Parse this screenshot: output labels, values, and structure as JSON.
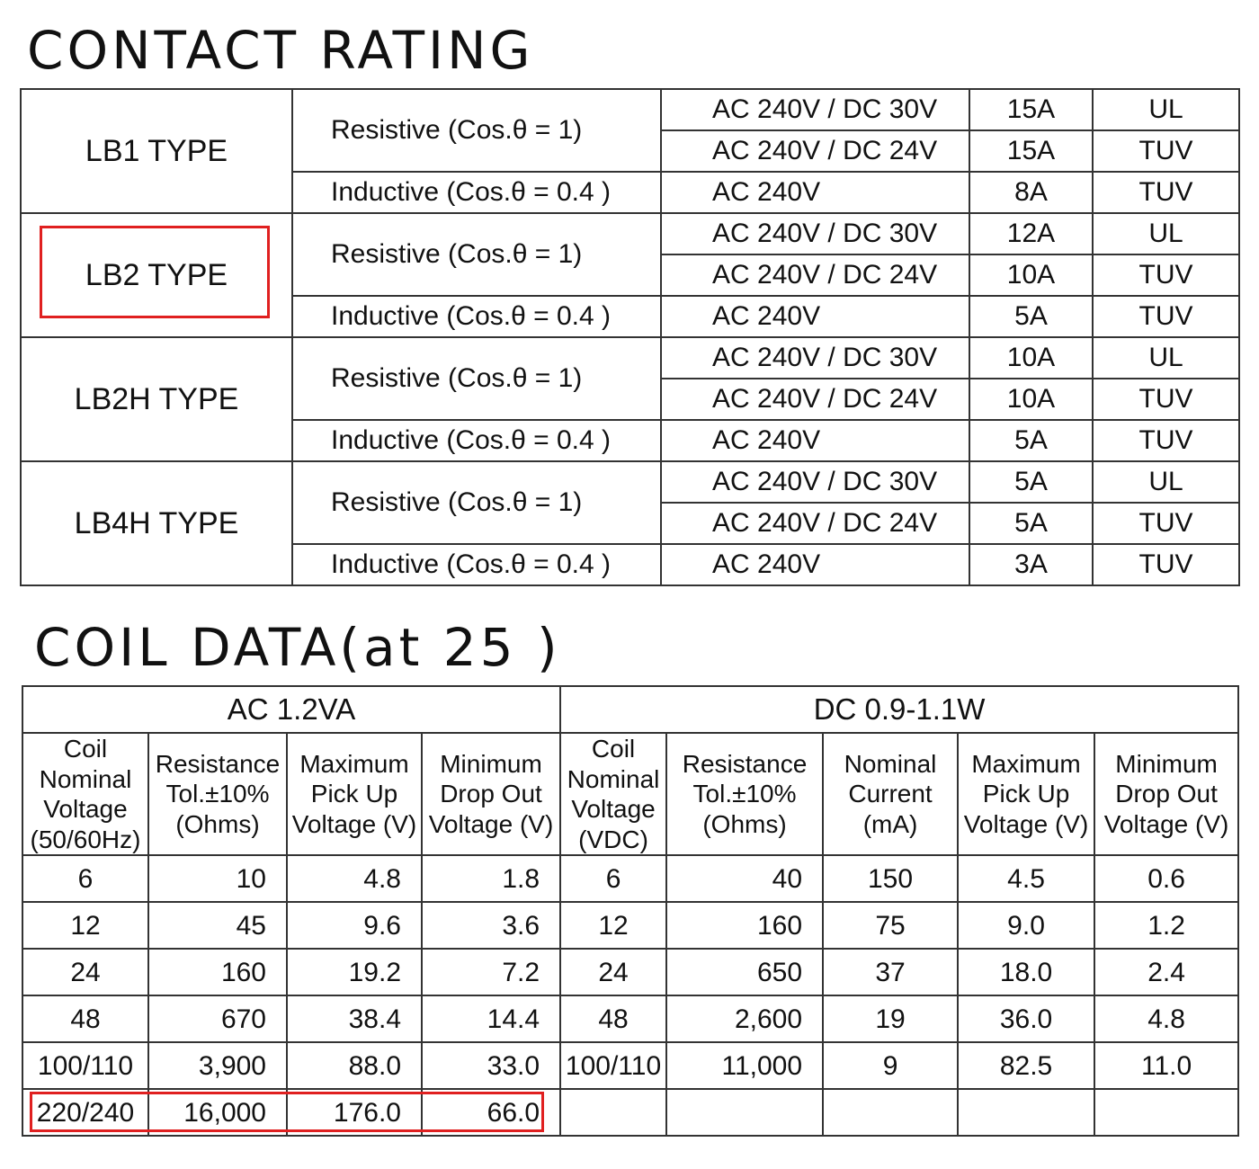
{
  "contact_section": {
    "title": "CONTACT RATING",
    "types": [
      {
        "name": "LB1 TYPE",
        "resistive_label": "Resistive (Cos.θ = 1)",
        "inductive_label": "Inductive (Cos.θ = 0.4 )",
        "rows": [
          {
            "voltage": "AC 240V / DC 30V",
            "current": "15A",
            "cert": "UL"
          },
          {
            "voltage": "AC 240V / DC 24V",
            "current": "15A",
            "cert": "TUV"
          },
          {
            "voltage": "AC 240V",
            "current": "8A",
            "cert": "TUV"
          }
        ]
      },
      {
        "name": "LB2 TYPE",
        "resistive_label": "Resistive (Cos.θ = 1)",
        "inductive_label": "Inductive (Cos.θ = 0.4 )",
        "rows": [
          {
            "voltage": "AC 240V / DC 30V",
            "current": "12A",
            "cert": "UL"
          },
          {
            "voltage": "AC 240V / DC 24V",
            "current": "10A",
            "cert": "TUV"
          },
          {
            "voltage": "AC 240V",
            "current": "5A",
            "cert": "TUV"
          }
        ]
      },
      {
        "name": "LB2H TYPE",
        "resistive_label": "Resistive (Cos.θ = 1)",
        "inductive_label": "Inductive (Cos.θ = 0.4 )",
        "rows": [
          {
            "voltage": "AC 240V / DC 30V",
            "current": "10A",
            "cert": "UL"
          },
          {
            "voltage": "AC 240V / DC 24V",
            "current": "10A",
            "cert": "TUV"
          },
          {
            "voltage": "AC 240V",
            "current": "5A",
            "cert": "TUV"
          }
        ]
      },
      {
        "name": "LB4H TYPE",
        "resistive_label": "Resistive (Cos.θ = 1)",
        "inductive_label": "Inductive (Cos.θ = 0.4 )",
        "rows": [
          {
            "voltage": "AC 240V / DC 30V",
            "current": "5A",
            "cert": "UL"
          },
          {
            "voltage": "AC 240V / DC 24V",
            "current": "5A",
            "cert": "TUV"
          },
          {
            "voltage": "AC 240V",
            "current": "3A",
            "cert": "TUV"
          }
        ]
      }
    ]
  },
  "coil_section": {
    "title": "COIL DATA(at 25 )",
    "ac_group": "AC  1.2VA",
    "dc_group": "DC  0.9-1.1W",
    "ac_headers": [
      "Coil\nNominal\nVoltage\n(50/60Hz)",
      "Resistance\nTol.±10%\n(Ohms)",
      "Maximum\nPick Up\nVoltage (V)",
      "Minimum\nDrop Out\nVoltage (V)"
    ],
    "dc_headers": [
      "Coil\nNominal\nVoltage\n(VDC)",
      "Resistance\nTol.±10%\n(Ohms)",
      "Nominal\nCurrent\n(mA)",
      "Maximum\nPick Up\nVoltage (V)",
      "Minimum\nDrop Out\nVoltage (V)"
    ],
    "rows": [
      {
        "ac": [
          "6",
          "10",
          "4.8",
          "1.8"
        ],
        "dc": [
          "6",
          "40",
          "150",
          "4.5",
          "0.6"
        ]
      },
      {
        "ac": [
          "12",
          "45",
          "9.6",
          "3.6"
        ],
        "dc": [
          "12",
          "160",
          "75",
          "9.0",
          "1.2"
        ]
      },
      {
        "ac": [
          "24",
          "160",
          "19.2",
          "7.2"
        ],
        "dc": [
          "24",
          "650",
          "37",
          "18.0",
          "2.4"
        ]
      },
      {
        "ac": [
          "48",
          "670",
          "38.4",
          "14.4"
        ],
        "dc": [
          "48",
          "2,600",
          "19",
          "36.0",
          "4.8"
        ]
      },
      {
        "ac": [
          "100/110",
          "3,900",
          "88.0",
          "33.0"
        ],
        "dc": [
          "100/110",
          "11,000",
          "9",
          "82.5",
          "11.0"
        ]
      },
      {
        "ac": [
          "220/240",
          "16,000",
          "176.0",
          "66.0"
        ],
        "dc": [
          "",
          "",
          "",
          "",
          ""
        ]
      }
    ]
  },
  "colors": {
    "highlight": "#e02020",
    "border": "#333333"
  }
}
